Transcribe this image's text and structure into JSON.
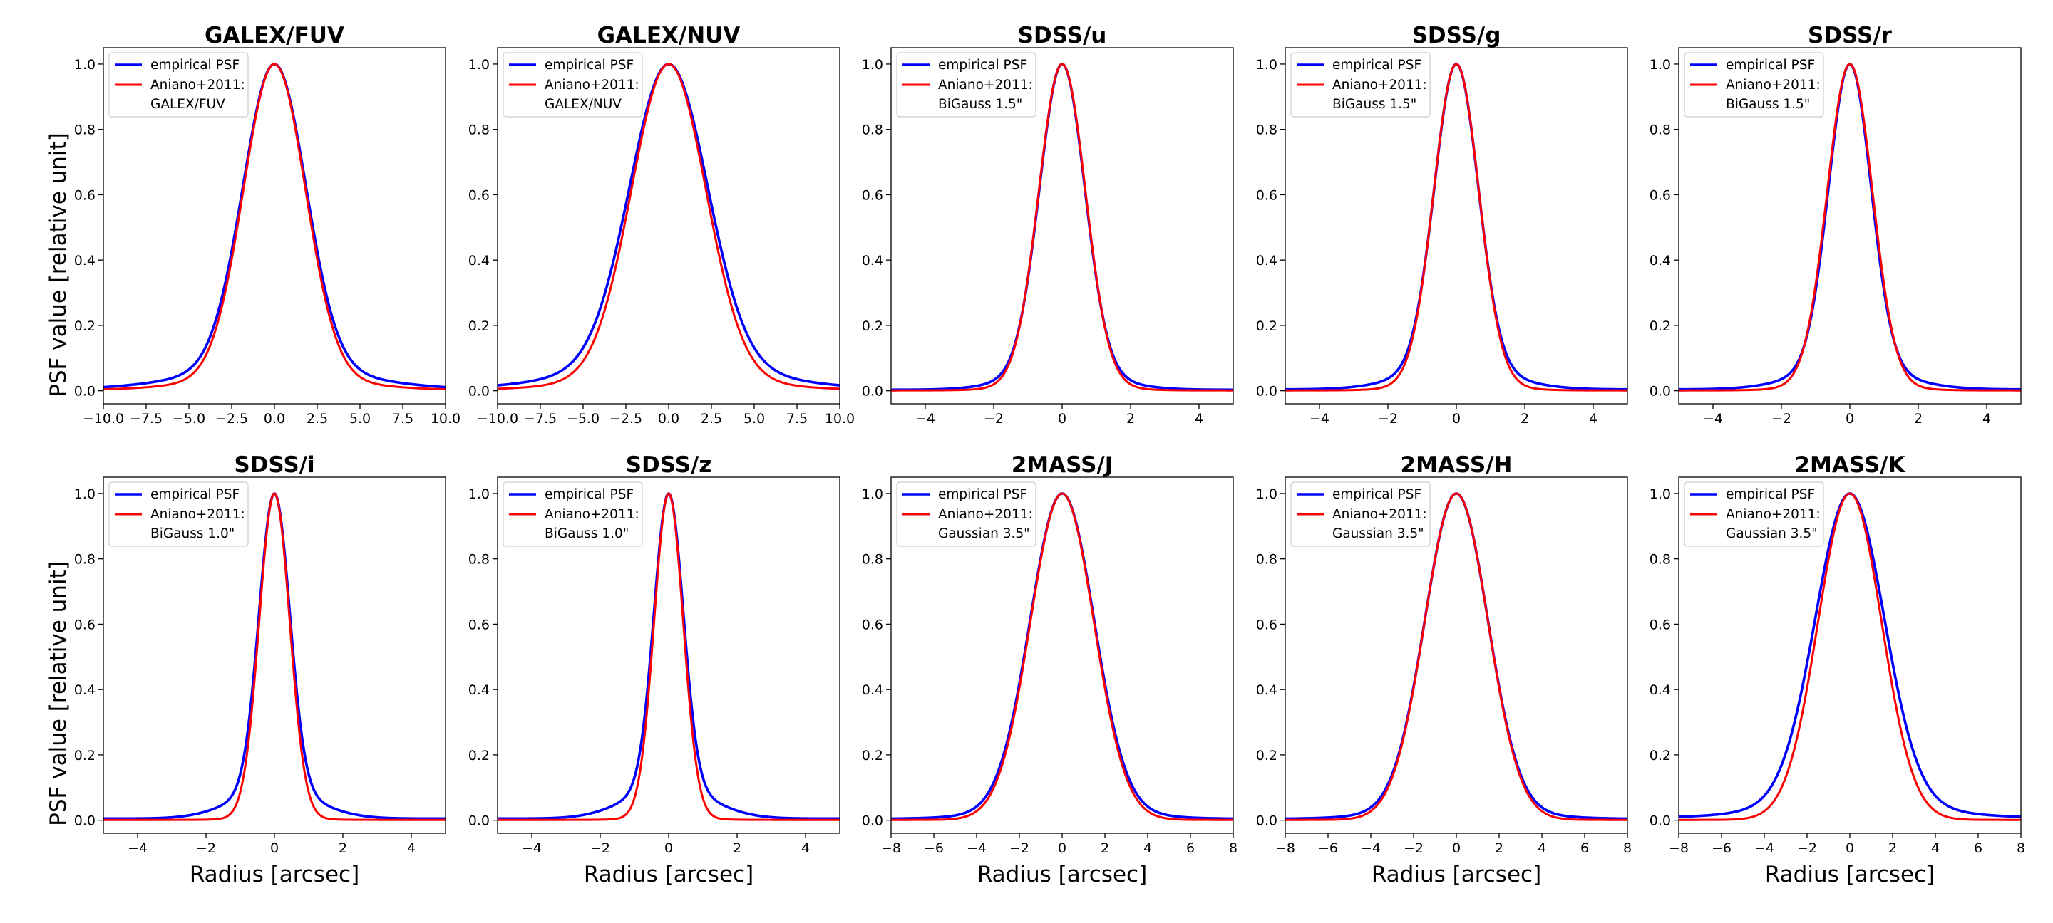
{
  "figure": {
    "ylabel": "PSF value [relative unit]",
    "xlabel": "Radius [arcsec]"
  },
  "colors": {
    "empirical": "#0000ff",
    "model": "#ff0000",
    "axes": "#000000",
    "legend_border": "#cccccc"
  },
  "legend_labels": {
    "empirical": "empirical PSF",
    "model": "Aniano+2011:"
  },
  "chart_data": [
    {
      "type": "line",
      "title": "GALEX/FUV",
      "xlim": [
        -10,
        10
      ],
      "ylim": [
        -0.04,
        1.05
      ],
      "xticks": [
        -10,
        -7.5,
        -5,
        -2.5,
        0,
        2.5,
        5,
        7.5,
        10
      ],
      "xtick_labels": [
        "−10.0",
        "−7.5",
        "−5.0",
        "−2.5",
        "0.0",
        "2.5",
        "5.0",
        "7.5",
        "10.0"
      ],
      "yticks": [
        0,
        0.2,
        0.4,
        0.6,
        0.8,
        1.0
      ],
      "ytick_labels": [
        "0.0",
        "0.2",
        "0.4",
        "0.6",
        "0.8",
        "1.0"
      ],
      "kernel_label": "GALEX/FUV",
      "series": [
        {
          "name": "empirical PSF",
          "profile": {
            "core_fwhm": 4.3,
            "wing_weight": 0.07,
            "wing_fwhm": 11.0,
            "floor": 0.004
          }
        },
        {
          "name": "Aniano+2011:",
          "profile": {
            "core_fwhm": 4.25,
            "wing_weight": 0.04,
            "wing_fwhm": 10.0,
            "floor": 0.002
          }
        }
      ]
    },
    {
      "type": "line",
      "title": "GALEX/NUV",
      "xlim": [
        -10,
        10
      ],
      "ylim": [
        -0.04,
        1.05
      ],
      "xticks": [
        -10,
        -7.5,
        -5,
        -2.5,
        0,
        2.5,
        5,
        7.5,
        10
      ],
      "xtick_labels": [
        "−10.0",
        "−7.5",
        "−5.0",
        "−2.5",
        "0.0",
        "2.5",
        "5.0",
        "7.5",
        "10.0"
      ],
      "yticks": [
        0,
        0.2,
        0.4,
        0.6,
        0.8,
        1.0
      ],
      "ytick_labels": [
        "0.0",
        "0.2",
        "0.4",
        "0.6",
        "0.8",
        "1.0"
      ],
      "kernel_label": "GALEX/NUV",
      "series": [
        {
          "name": "empirical PSF",
          "profile": {
            "core_fwhm": 5.3,
            "wing_weight": 0.08,
            "wing_fwhm": 12.0,
            "floor": 0.005
          }
        },
        {
          "name": "Aniano+2011:",
          "profile": {
            "core_fwhm": 5.1,
            "wing_weight": 0.04,
            "wing_fwhm": 11.0,
            "floor": 0.002
          }
        }
      ]
    },
    {
      "type": "line",
      "title": "SDSS/u",
      "xlim": [
        -5,
        5
      ],
      "ylim": [
        -0.04,
        1.05
      ],
      "xticks": [
        -4,
        -2,
        0,
        2,
        4
      ],
      "xtick_labels": [
        "−4",
        "−2",
        "0",
        "2",
        "4"
      ],
      "yticks": [
        0,
        0.2,
        0.4,
        0.6,
        0.8,
        1.0
      ],
      "ytick_labels": [
        "0.0",
        "0.2",
        "0.4",
        "0.6",
        "0.8",
        "1.0"
      ],
      "kernel_label": "BiGauss 1.5\"",
      "series": [
        {
          "name": "empirical PSF",
          "profile": {
            "core_fwhm": 1.55,
            "wing_weight": 0.06,
            "wing_fwhm": 3.2,
            "floor": 0.003
          }
        },
        {
          "name": "Aniano+2011:",
          "profile": {
            "core_fwhm": 1.6,
            "wing_weight": 0.02,
            "wing_fwhm": 3.0,
            "floor": 0.001
          }
        }
      ]
    },
    {
      "type": "line",
      "title": "SDSS/g",
      "xlim": [
        -5,
        5
      ],
      "ylim": [
        -0.04,
        1.05
      ],
      "xticks": [
        -4,
        -2,
        0,
        2,
        4
      ],
      "xtick_labels": [
        "−4",
        "−2",
        "0",
        "2",
        "4"
      ],
      "yticks": [
        0,
        0.2,
        0.4,
        0.6,
        0.8,
        1.0
      ],
      "ytick_labels": [
        "0.0",
        "0.2",
        "0.4",
        "0.6",
        "0.8",
        "1.0"
      ],
      "kernel_label": "BiGauss 1.5\"",
      "series": [
        {
          "name": "empirical PSF",
          "profile": {
            "core_fwhm": 1.5,
            "wing_weight": 0.07,
            "wing_fwhm": 3.4,
            "floor": 0.004
          }
        },
        {
          "name": "Aniano+2011:",
          "profile": {
            "core_fwhm": 1.55,
            "wing_weight": 0.02,
            "wing_fwhm": 3.0,
            "floor": 0.001
          }
        }
      ]
    },
    {
      "type": "line",
      "title": "SDSS/r",
      "xlim": [
        -5,
        5
      ],
      "ylim": [
        -0.04,
        1.05
      ],
      "xticks": [
        -4,
        -2,
        0,
        2,
        4
      ],
      "xtick_labels": [
        "−4",
        "−2",
        "0",
        "2",
        "4"
      ],
      "yticks": [
        0,
        0.2,
        0.4,
        0.6,
        0.8,
        1.0
      ],
      "ytick_labels": [
        "0.0",
        "0.2",
        "0.4",
        "0.6",
        "0.8",
        "1.0"
      ],
      "kernel_label": "BiGauss 1.5\"",
      "series": [
        {
          "name": "empirical PSF",
          "profile": {
            "core_fwhm": 1.45,
            "wing_weight": 0.07,
            "wing_fwhm": 3.4,
            "floor": 0.004
          }
        },
        {
          "name": "Aniano+2011:",
          "profile": {
            "core_fwhm": 1.55,
            "wing_weight": 0.02,
            "wing_fwhm": 3.0,
            "floor": 0.001
          }
        }
      ]
    },
    {
      "type": "line",
      "title": "SDSS/i",
      "xlim": [
        -5,
        5
      ],
      "ylim": [
        -0.04,
        1.05
      ],
      "xticks": [
        -4,
        -2,
        0,
        2,
        4
      ],
      "xtick_labels": [
        "−4",
        "−2",
        "0",
        "2",
        "4"
      ],
      "yticks": [
        0,
        0.2,
        0.4,
        0.6,
        0.8,
        1.0
      ],
      "ytick_labels": [
        "0.0",
        "0.2",
        "0.4",
        "0.6",
        "0.8",
        "1.0"
      ],
      "kernel_label": "BiGauss 1.0\"",
      "series": [
        {
          "name": "empirical PSF",
          "profile": {
            "core_fwhm": 1.05,
            "wing_weight": 0.09,
            "wing_fwhm": 2.8,
            "floor": 0.005
          }
        },
        {
          "name": "Aniano+2011:",
          "profile": {
            "core_fwhm": 1.05,
            "wing_weight": 0.01,
            "wing_fwhm": 2.0,
            "floor": 0.001
          }
        }
      ]
    },
    {
      "type": "line",
      "title": "SDSS/z",
      "xlim": [
        -5,
        5
      ],
      "ylim": [
        -0.04,
        1.05
      ],
      "xticks": [
        -4,
        -2,
        0,
        2,
        4
      ],
      "xtick_labels": [
        "−4",
        "−2",
        "0",
        "2",
        "4"
      ],
      "yticks": [
        0,
        0.2,
        0.4,
        0.6,
        0.8,
        1.0
      ],
      "ytick_labels": [
        "0.0",
        "0.2",
        "0.4",
        "0.6",
        "0.8",
        "1.0"
      ],
      "kernel_label": "BiGauss 1.0\"",
      "series": [
        {
          "name": "empirical PSF",
          "profile": {
            "core_fwhm": 1.0,
            "wing_weight": 0.1,
            "wing_fwhm": 2.8,
            "floor": 0.005
          }
        },
        {
          "name": "Aniano+2011:",
          "profile": {
            "core_fwhm": 1.0,
            "wing_weight": 0.01,
            "wing_fwhm": 2.0,
            "floor": 0.001
          }
        }
      ]
    },
    {
      "type": "line",
      "title": "2MASS/J",
      "xlim": [
        -8,
        8
      ],
      "ylim": [
        -0.04,
        1.05
      ],
      "xticks": [
        -8,
        -6,
        -4,
        -2,
        0,
        2,
        4,
        6,
        8
      ],
      "xtick_labels": [
        "−8",
        "−6",
        "−4",
        "−2",
        "0",
        "2",
        "4",
        "6",
        "8"
      ],
      "yticks": [
        0,
        0.2,
        0.4,
        0.6,
        0.8,
        1.0
      ],
      "ytick_labels": [
        "0.0",
        "0.2",
        "0.4",
        "0.6",
        "0.8",
        "1.0"
      ],
      "kernel_label": "Gaussian 3.5\"",
      "series": [
        {
          "name": "empirical PSF",
          "profile": {
            "core_fwhm": 3.5,
            "wing_weight": 0.03,
            "wing_fwhm": 7.0,
            "floor": 0.004
          }
        },
        {
          "name": "Aniano+2011:",
          "profile": {
            "core_fwhm": 3.5,
            "wing_weight": 0.0,
            "wing_fwhm": 7.0,
            "floor": 0.001
          }
        }
      ]
    },
    {
      "type": "line",
      "title": "2MASS/H",
      "xlim": [
        -8,
        8
      ],
      "ylim": [
        -0.04,
        1.05
      ],
      "xticks": [
        -8,
        -6,
        -4,
        -2,
        0,
        2,
        4,
        6,
        8
      ],
      "xtick_labels": [
        "−8",
        "−6",
        "−4",
        "−2",
        "0",
        "2",
        "4",
        "6",
        "8"
      ],
      "yticks": [
        0,
        0.2,
        0.4,
        0.6,
        0.8,
        1.0
      ],
      "ytick_labels": [
        "0.0",
        "0.2",
        "0.4",
        "0.6",
        "0.8",
        "1.0"
      ],
      "kernel_label": "Gaussian 3.5\"",
      "series": [
        {
          "name": "empirical PSF",
          "profile": {
            "core_fwhm": 3.45,
            "wing_weight": 0.03,
            "wing_fwhm": 7.0,
            "floor": 0.004
          }
        },
        {
          "name": "Aniano+2011:",
          "profile": {
            "core_fwhm": 3.5,
            "wing_weight": 0.0,
            "wing_fwhm": 7.0,
            "floor": 0.001
          }
        }
      ]
    },
    {
      "type": "line",
      "title": "2MASS/K",
      "xlim": [
        -8,
        8
      ],
      "ylim": [
        -0.04,
        1.05
      ],
      "xticks": [
        -8,
        -6,
        -4,
        -2,
        0,
        2,
        4,
        6,
        8
      ],
      "xtick_labels": [
        "−8",
        "−6",
        "−4",
        "−2",
        "0",
        "2",
        "4",
        "6",
        "8"
      ],
      "yticks": [
        0,
        0.2,
        0.4,
        0.6,
        0.8,
        1.0
      ],
      "ytick_labels": [
        "0.0",
        "0.2",
        "0.4",
        "0.6",
        "0.8",
        "1.0"
      ],
      "kernel_label": "Gaussian 3.5\"",
      "series": [
        {
          "name": "empirical PSF",
          "profile": {
            "core_fwhm": 3.75,
            "wing_weight": 0.06,
            "wing_fwhm": 7.5,
            "floor": 0.008
          }
        },
        {
          "name": "Aniano+2011:",
          "profile": {
            "core_fwhm": 3.5,
            "wing_weight": 0.0,
            "wing_fwhm": 7.0,
            "floor": 0.001
          }
        }
      ]
    }
  ]
}
